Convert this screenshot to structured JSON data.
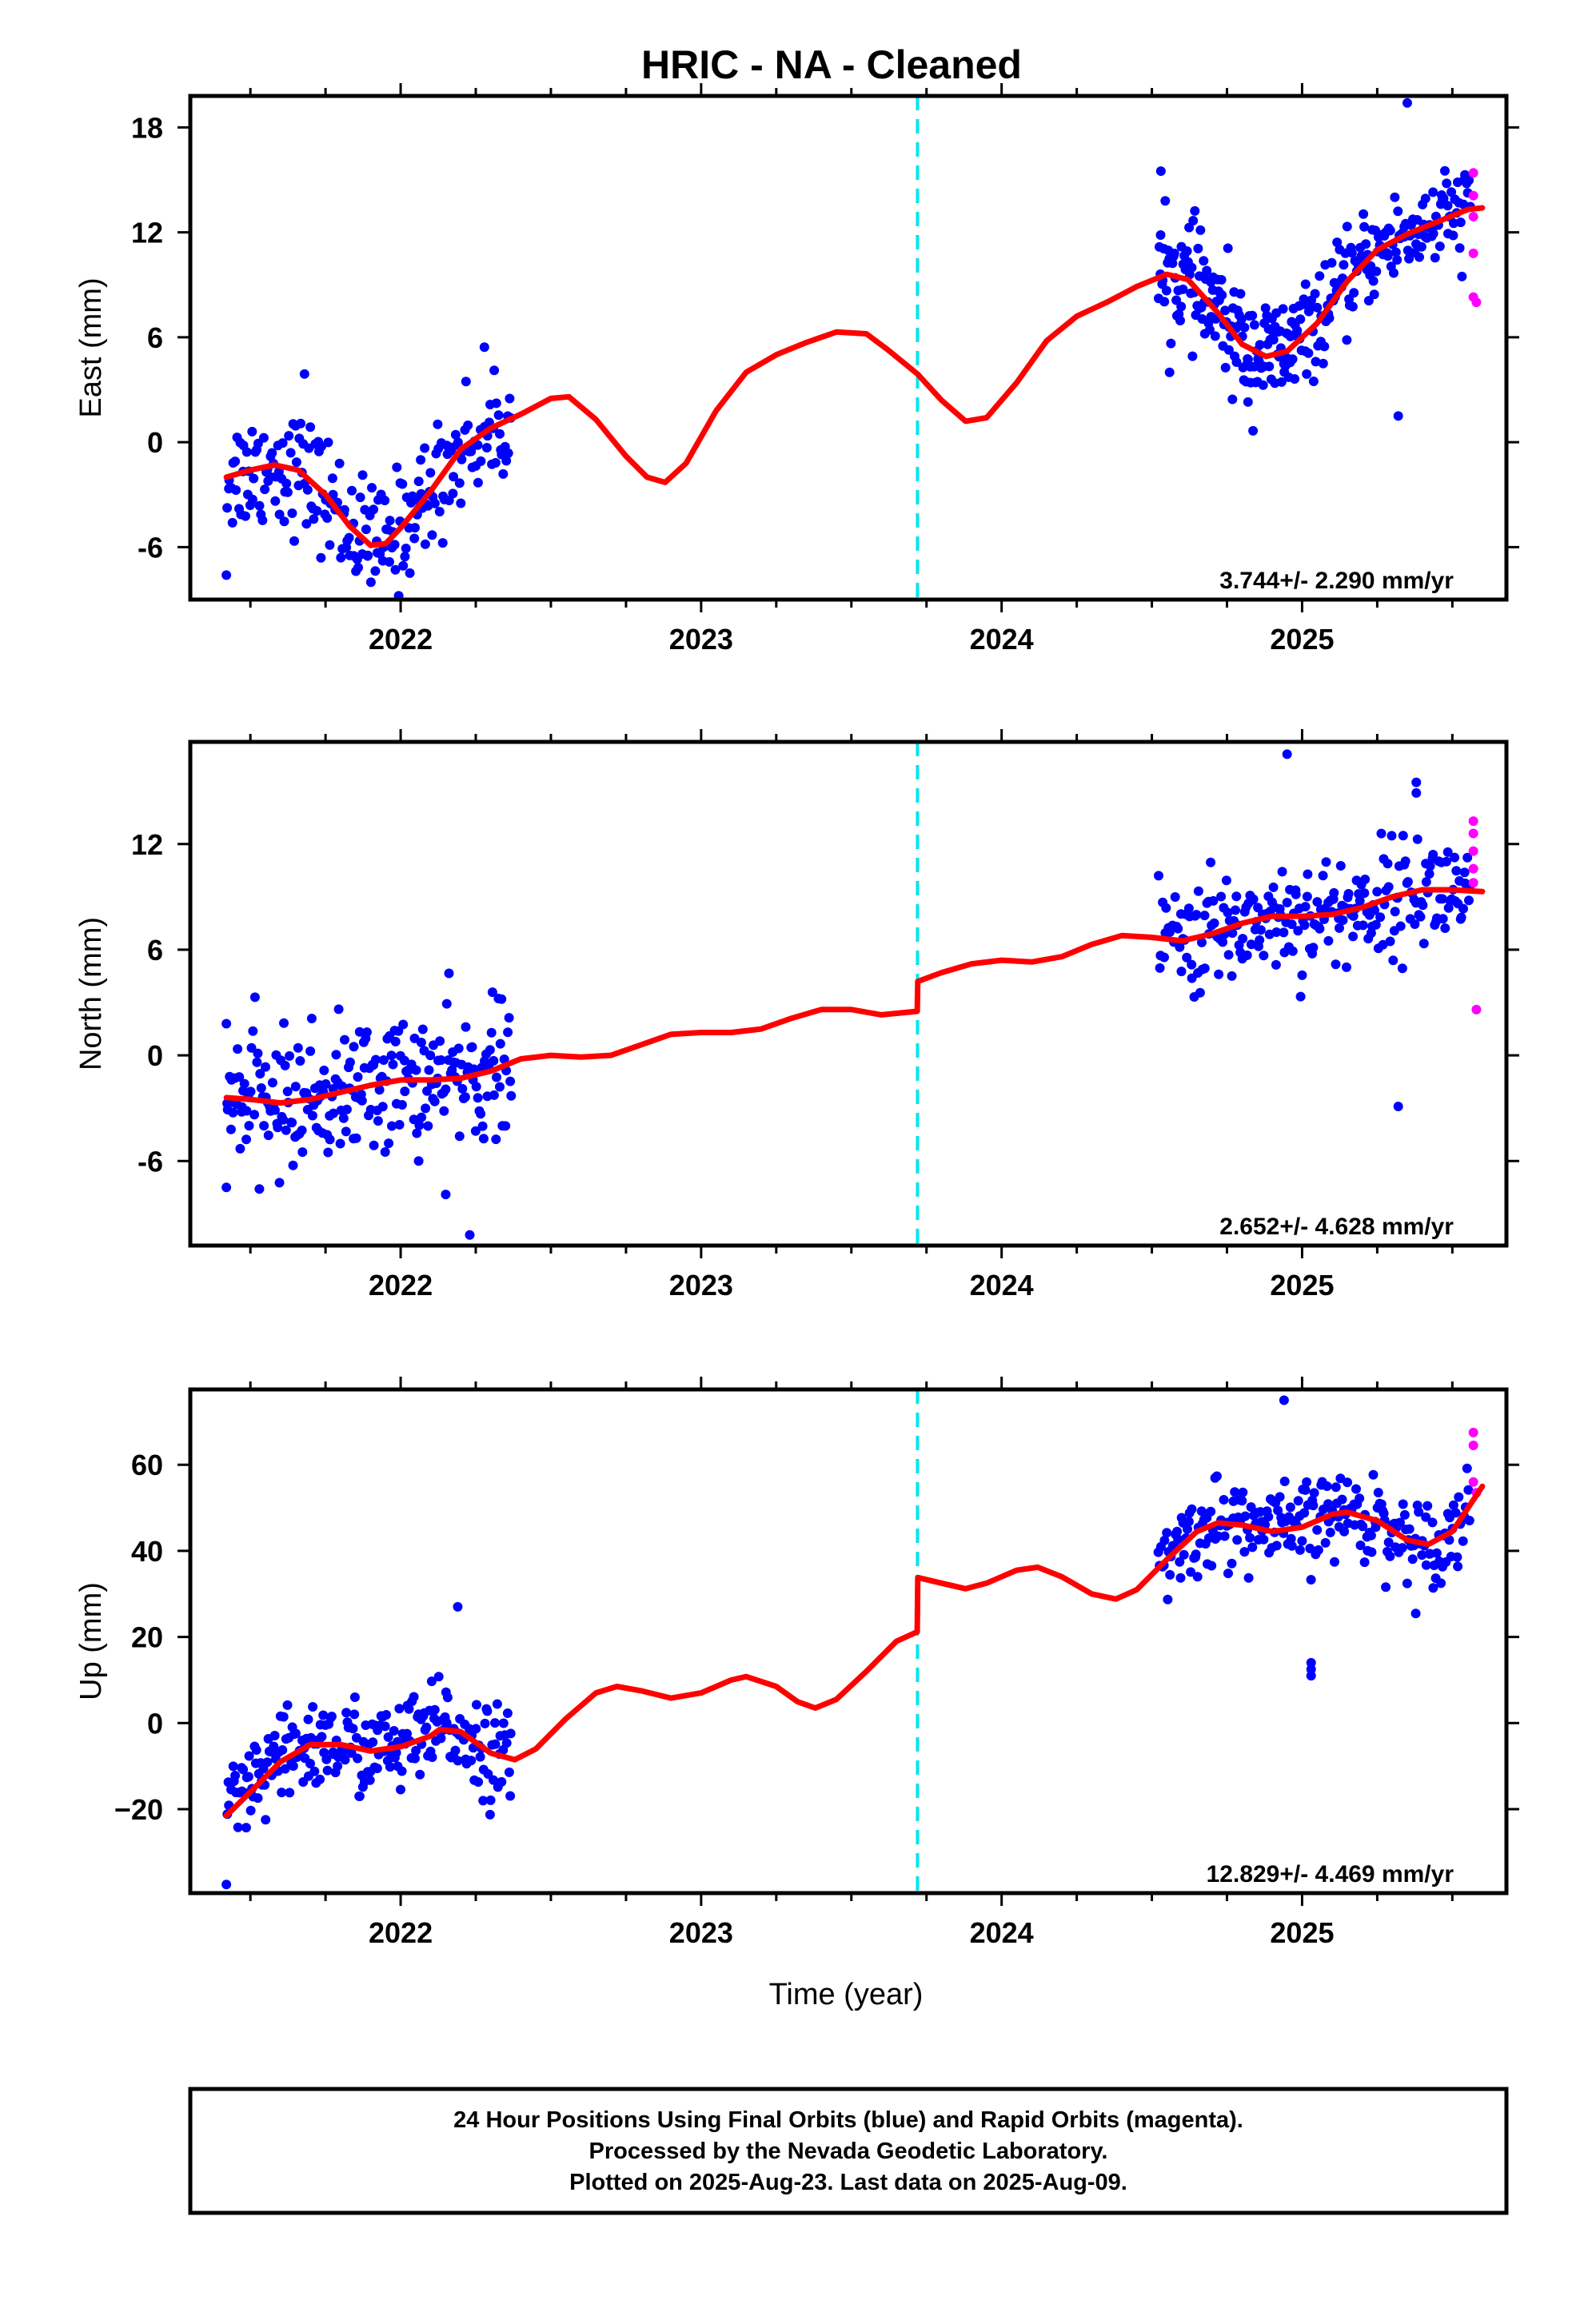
{
  "title": "HRIC  - NA - Cleaned",
  "x_axis_label": "Time (year)",
  "footer": {
    "line1": "24 Hour Positions Using Final Orbits (blue) and Rapid Orbits (magenta).",
    "line2": "Processed by the Nevada Geodetic Laboratory.",
    "line3": "Plotted on 2025-Aug-23. Last data on 2025-Aug-09."
  },
  "colors": {
    "final_orbits": "#0000ff",
    "rapid_orbits": "#ff00ff",
    "model": "#ff0000",
    "equipment_change": "#00e5ee"
  },
  "chart_data": [
    {
      "type": "scatter",
      "name": "east",
      "ylabel": "East (mm)",
      "rate_text": "3.744+/- 2.290 mm/yr",
      "xlim": [
        2021.3,
        2025.68
      ],
      "ylim": [
        -9.0,
        19.8
      ],
      "yticks": [
        -6,
        0,
        6,
        12,
        18
      ],
      "ytick_labels": [
        "-6",
        "0",
        "6",
        "12",
        "18"
      ],
      "xticks": [
        2022,
        2023,
        2024,
        2025
      ],
      "xtick_labels": [
        "2022",
        "2023",
        "2024",
        "2025"
      ],
      "offset_epoch": 2023.72,
      "model_curve": [
        [
          2021.42,
          -2.0
        ],
        [
          2021.5,
          -1.6
        ],
        [
          2021.58,
          -1.3
        ],
        [
          2021.66,
          -1.6
        ],
        [
          2021.75,
          -3.0
        ],
        [
          2021.83,
          -4.8
        ],
        [
          2021.9,
          -5.9
        ],
        [
          2021.95,
          -5.8
        ],
        [
          2022.0,
          -4.9
        ],
        [
          2022.1,
          -2.8
        ],
        [
          2022.2,
          -0.4
        ],
        [
          2022.3,
          0.8
        ],
        [
          2022.4,
          1.6
        ],
        [
          2022.5,
          2.5
        ],
        [
          2022.56,
          2.6
        ],
        [
          2022.65,
          1.3
        ],
        [
          2022.75,
          -0.8
        ],
        [
          2022.82,
          -2.0
        ],
        [
          2022.88,
          -2.3
        ],
        [
          2022.95,
          -1.2
        ],
        [
          2023.05,
          1.8
        ],
        [
          2023.15,
          4.0
        ],
        [
          2023.25,
          5.0
        ],
        [
          2023.35,
          5.7
        ],
        [
          2023.45,
          6.3
        ],
        [
          2023.55,
          6.2
        ],
        [
          2023.62,
          5.3
        ],
        [
          2023.72,
          3.9
        ],
        [
          2023.8,
          2.4
        ],
        [
          2023.88,
          1.2
        ],
        [
          2023.95,
          1.4
        ],
        [
          2024.05,
          3.4
        ],
        [
          2024.15,
          5.8
        ],
        [
          2024.25,
          7.2
        ],
        [
          2024.35,
          8.0
        ],
        [
          2024.45,
          8.9
        ],
        [
          2024.55,
          9.6
        ],
        [
          2024.62,
          9.3
        ],
        [
          2024.72,
          7.4
        ],
        [
          2024.8,
          5.6
        ],
        [
          2024.88,
          4.9
        ],
        [
          2024.95,
          5.2
        ],
        [
          2025.05,
          6.8
        ],
        [
          2025.15,
          9.2
        ],
        [
          2025.25,
          11.0
        ],
        [
          2025.35,
          11.9
        ],
        [
          2025.45,
          12.6
        ],
        [
          2025.55,
          13.3
        ],
        [
          2025.6,
          13.4
        ]
      ],
      "rapid_points": [
        [
          2025.57,
          15.4
        ],
        [
          2025.57,
          14.1
        ],
        [
          2025.57,
          12.9
        ],
        [
          2025.57,
          10.8
        ],
        [
          2025.57,
          8.3
        ],
        [
          2025.58,
          8.0
        ]
      ],
      "outliers": [
        [
          2021.42,
          -7.6
        ],
        [
          2021.68,
          3.9
        ],
        [
          2024.53,
          15.5
        ],
        [
          2024.82,
          2.3
        ],
        [
          2025.32,
          1.5
        ],
        [
          2025.35,
          19.4
        ]
      ],
      "segments": [
        {
          "start": 2021.42,
          "end": 2022.37,
          "spread": 1.7,
          "n": 220
        },
        {
          "start": 2024.52,
          "end": 2025.0,
          "spread": 1.6,
          "n": 160
        },
        {
          "start": 2025.0,
          "end": 2025.56,
          "spread": 1.3,
          "n": 150
        }
      ]
    },
    {
      "type": "scatter",
      "name": "north",
      "ylabel": "North (mm)",
      "rate_text": "2.652+/- 4.628 mm/yr",
      "xlim": [
        2021.3,
        2025.68
      ],
      "ylim": [
        -10.8,
        17.8
      ],
      "yticks": [
        -6,
        0,
        6,
        12
      ],
      "ytick_labels": [
        "-6",
        "0",
        "6",
        "12"
      ],
      "xticks": [
        2022,
        2023,
        2024,
        2025
      ],
      "xtick_labels": [
        "2022",
        "2023",
        "2024",
        "2025"
      ],
      "offset_epoch": 2023.72,
      "model_curve": [
        [
          2021.42,
          -2.4
        ],
        [
          2021.5,
          -2.5
        ],
        [
          2021.6,
          -2.7
        ],
        [
          2021.7,
          -2.5
        ],
        [
          2021.8,
          -2.1
        ],
        [
          2021.9,
          -1.7
        ],
        [
          2022.0,
          -1.4
        ],
        [
          2022.1,
          -1.4
        ],
        [
          2022.2,
          -1.3
        ],
        [
          2022.3,
          -0.9
        ],
        [
          2022.4,
          -0.2
        ],
        [
          2022.5,
          0.0
        ],
        [
          2022.6,
          -0.1
        ],
        [
          2022.7,
          0.0
        ],
        [
          2022.8,
          0.6
        ],
        [
          2022.9,
          1.2
        ],
        [
          2023.0,
          1.3
        ],
        [
          2023.1,
          1.3
        ],
        [
          2023.2,
          1.5
        ],
        [
          2023.3,
          2.1
        ],
        [
          2023.4,
          2.6
        ],
        [
          2023.5,
          2.6
        ],
        [
          2023.6,
          2.3
        ],
        [
          2023.719,
          2.5
        ],
        [
          2023.721,
          4.2
        ],
        [
          2023.8,
          4.7
        ],
        [
          2023.9,
          5.2
        ],
        [
          2024.0,
          5.4
        ],
        [
          2024.1,
          5.3
        ],
        [
          2024.2,
          5.6
        ],
        [
          2024.3,
          6.3
        ],
        [
          2024.4,
          6.8
        ],
        [
          2024.5,
          6.7
        ],
        [
          2024.6,
          6.5
        ],
        [
          2024.7,
          6.9
        ],
        [
          2024.8,
          7.5
        ],
        [
          2024.9,
          7.9
        ],
        [
          2025.0,
          7.9
        ],
        [
          2025.1,
          8.0
        ],
        [
          2025.2,
          8.4
        ],
        [
          2025.3,
          9.0
        ],
        [
          2025.4,
          9.4
        ],
        [
          2025.5,
          9.4
        ],
        [
          2025.6,
          9.3
        ]
      ],
      "rapid_points": [
        [
          2025.57,
          13.3
        ],
        [
          2025.57,
          12.6
        ],
        [
          2025.57,
          11.6
        ],
        [
          2025.57,
          10.6
        ],
        [
          2025.57,
          9.8
        ],
        [
          2025.58,
          2.6
        ]
      ],
      "outliers": [
        [
          2021.42,
          1.8
        ],
        [
          2021.42,
          -7.5
        ],
        [
          2022.15,
          -7.9
        ],
        [
          2022.23,
          -10.2
        ],
        [
          2024.95,
          17.1
        ],
        [
          2025.32,
          -2.9
        ],
        [
          2025.38,
          15.5
        ],
        [
          2025.38,
          14.9
        ]
      ],
      "segments": [
        {
          "start": 2021.42,
          "end": 2022.37,
          "spread": 1.9,
          "n": 240
        },
        {
          "start": 2024.52,
          "end": 2025.56,
          "spread": 1.6,
          "n": 240
        }
      ]
    },
    {
      "type": "scatter",
      "name": "up",
      "ylabel": "Up (mm)",
      "rate_text": "12.829+/- 4.469 mm/yr",
      "xlim": [
        2021.3,
        2025.68
      ],
      "ylim": [
        -39.5,
        77.5
      ],
      "yticks": [
        -20,
        0,
        20,
        40,
        60
      ],
      "ytick_labels": [
        "−20",
        "0",
        "20",
        "40",
        "60"
      ],
      "xticks": [
        2022,
        2023,
        2024,
        2025
      ],
      "xtick_labels": [
        "2022",
        "2023",
        "2024",
        "2025"
      ],
      "offset_epoch": 2023.72,
      "model_curve": [
        [
          2021.42,
          -21.5
        ],
        [
          2021.5,
          -16.0
        ],
        [
          2021.6,
          -9.0
        ],
        [
          2021.7,
          -5.0
        ],
        [
          2021.8,
          -5.0
        ],
        [
          2021.9,
          -6.5
        ],
        [
          2022.0,
          -5.5
        ],
        [
          2022.1,
          -3.0
        ],
        [
          2022.13,
          -1.5
        ],
        [
          2022.2,
          -2.0
        ],
        [
          2022.3,
          -7.0
        ],
        [
          2022.38,
          -8.5
        ],
        [
          2022.45,
          -6.0
        ],
        [
          2022.55,
          1.0
        ],
        [
          2022.65,
          7.0
        ],
        [
          2022.72,
          8.5
        ],
        [
          2022.8,
          7.5
        ],
        [
          2022.9,
          5.8
        ],
        [
          2023.0,
          7.0
        ],
        [
          2023.1,
          10.0
        ],
        [
          2023.15,
          10.8
        ],
        [
          2023.25,
          8.5
        ],
        [
          2023.32,
          5.0
        ],
        [
          2023.38,
          3.5
        ],
        [
          2023.45,
          5.5
        ],
        [
          2023.55,
          12.0
        ],
        [
          2023.65,
          19.0
        ],
        [
          2023.719,
          21.2
        ],
        [
          2023.721,
          33.8
        ],
        [
          2023.8,
          32.5
        ],
        [
          2023.88,
          31.2
        ],
        [
          2023.95,
          32.5
        ],
        [
          2024.05,
          35.5
        ],
        [
          2024.12,
          36.2
        ],
        [
          2024.2,
          34.0
        ],
        [
          2024.3,
          30.0
        ],
        [
          2024.38,
          28.8
        ],
        [
          2024.45,
          31.0
        ],
        [
          2024.55,
          38.0
        ],
        [
          2024.65,
          44.5
        ],
        [
          2024.72,
          46.5
        ],
        [
          2024.8,
          46.0
        ],
        [
          2024.9,
          44.5
        ],
        [
          2025.0,
          45.5
        ],
        [
          2025.1,
          48.5
        ],
        [
          2025.15,
          49.0
        ],
        [
          2025.25,
          47.0
        ],
        [
          2025.35,
          42.5
        ],
        [
          2025.42,
          41.5
        ],
        [
          2025.5,
          44.5
        ],
        [
          2025.6,
          55.0
        ]
      ],
      "rapid_points": [
        [
          2025.57,
          67.5
        ],
        [
          2025.57,
          64.5
        ],
        [
          2025.57,
          56.0
        ],
        [
          2025.58,
          53.5
        ]
      ],
      "outliers": [
        [
          2022.19,
          27.0
        ],
        [
          2024.94,
          75.0
        ],
        [
          2025.03,
          14.0
        ],
        [
          2025.03,
          11.0
        ],
        [
          2025.03,
          12.5
        ],
        [
          2021.42,
          -37.5
        ]
      ],
      "segments": [
        {
          "start": 2021.42,
          "end": 2022.37,
          "spread": 5.5,
          "n": 240
        },
        {
          "start": 2024.52,
          "end": 2025.56,
          "spread": 5.0,
          "n": 240
        }
      ]
    }
  ]
}
